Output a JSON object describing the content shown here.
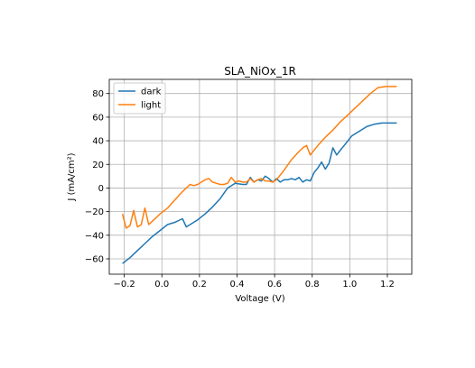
{
  "chart_data": {
    "type": "line",
    "title": "SLA_NiOx_1R",
    "xlabel": "Voltage (V)",
    "ylabel": "J (mA/cm²)",
    "xlim": [
      -0.28,
      1.33
    ],
    "ylim": [
      -73,
      92
    ],
    "x_ticks": [
      -0.2,
      0.0,
      0.2,
      0.4,
      0.6,
      0.8,
      1.0,
      1.2
    ],
    "y_ticks": [
      -60,
      -40,
      -20,
      0,
      20,
      40,
      60,
      80
    ],
    "x_tick_labels": [
      "−0.2",
      "0.0",
      "0.2",
      "0.4",
      "0.6",
      "0.8",
      "1.0",
      "1.2"
    ],
    "y_tick_labels": [
      "−60",
      "−40",
      "−20",
      "0",
      "20",
      "40",
      "60",
      "80"
    ],
    "grid": true,
    "legend_position": "upper-left",
    "series": [
      {
        "name": "dark",
        "color": "#1f77b4",
        "x": [
          -0.21,
          -0.17,
          -0.13,
          -0.09,
          -0.05,
          -0.01,
          0.03,
          0.07,
          0.11,
          0.13,
          0.15,
          0.19,
          0.23,
          0.27,
          0.31,
          0.35,
          0.39,
          0.43,
          0.45,
          0.47,
          0.49,
          0.51,
          0.53,
          0.55,
          0.57,
          0.59,
          0.61,
          0.63,
          0.65,
          0.67,
          0.69,
          0.71,
          0.73,
          0.75,
          0.77,
          0.79,
          0.81,
          0.83,
          0.85,
          0.87,
          0.89,
          0.91,
          0.93,
          0.95,
          0.97,
          0.99,
          1.01,
          1.05,
          1.09,
          1.13,
          1.17,
          1.21,
          1.23,
          1.25
        ],
        "y": [
          -64,
          -59,
          -53,
          -47,
          -41,
          -36,
          -31,
          -29,
          -26,
          -33,
          -31,
          -27,
          -22,
          -16,
          -9,
          0,
          4,
          3,
          3,
          9,
          5,
          7,
          6,
          10,
          8,
          5,
          8,
          5,
          7,
          7,
          8,
          7,
          9,
          5,
          7,
          6,
          13,
          17,
          22,
          16,
          21,
          34,
          28,
          32,
          36,
          40,
          44,
          48,
          52,
          54,
          55,
          55,
          55,
          55
        ]
      },
      {
        "name": "light",
        "color": "#ff7f0e",
        "x": [
          -0.21,
          -0.19,
          -0.17,
          -0.15,
          -0.13,
          -0.11,
          -0.09,
          -0.07,
          -0.05,
          -0.01,
          0.03,
          0.07,
          0.11,
          0.15,
          0.17,
          0.19,
          0.21,
          0.23,
          0.25,
          0.27,
          0.29,
          0.31,
          0.33,
          0.35,
          0.37,
          0.39,
          0.41,
          0.43,
          0.45,
          0.47,
          0.49,
          0.51,
          0.53,
          0.55,
          0.57,
          0.59,
          0.61,
          0.65,
          0.69,
          0.73,
          0.75,
          0.77,
          0.79,
          0.83,
          0.87,
          0.91,
          0.95,
          0.99,
          1.03,
          1.07,
          1.11,
          1.15,
          1.19,
          1.23,
          1.25
        ],
        "y": [
          -22,
          -34,
          -32,
          -19,
          -33,
          -31,
          -17,
          -31,
          -28,
          -22,
          -17,
          -10,
          -3,
          3,
          2,
          3,
          5,
          7,
          8,
          5,
          4,
          3,
          3,
          4,
          9,
          5,
          6,
          5,
          5,
          8,
          5,
          7,
          8,
          6,
          6,
          5,
          7,
          15,
          24,
          31,
          34,
          36,
          28,
          36,
          43,
          49,
          56,
          62,
          68,
          74,
          80,
          85,
          86,
          86,
          86
        ]
      }
    ]
  }
}
